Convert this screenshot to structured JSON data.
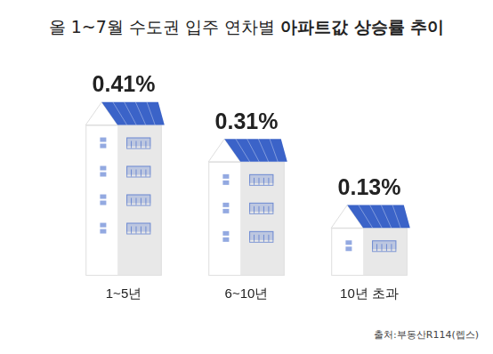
{
  "chart_data": {
    "type": "bar",
    "title": "올 1~7월 수도권 입주 연차별 아파트값 상승률 추이",
    "categories": [
      "1~5년",
      "6~10년",
      "10년 초과"
    ],
    "values": [
      0.41,
      0.31,
      0.13
    ],
    "value_labels": [
      "0.41%",
      "0.31%",
      "0.13%"
    ],
    "color": "#3b63c8",
    "data_labels": true,
    "tick_labels": "x",
    "grid": false,
    "source": "출처:부동산R114(렙스)"
  }
}
